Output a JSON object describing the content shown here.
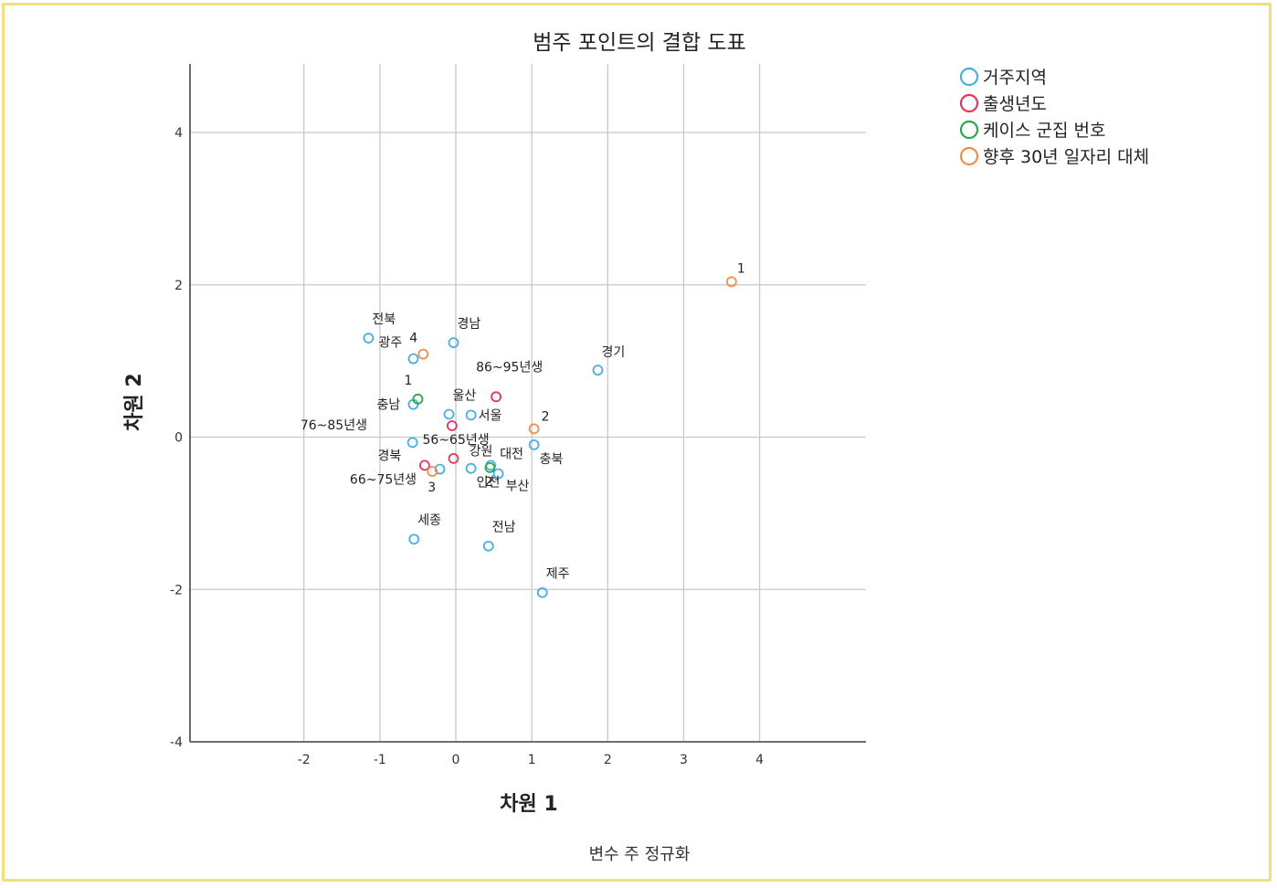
{
  "chart_data": {
    "type": "scatter",
    "title": "범주 포인트의 결합 도표",
    "xlabel": "차원 1",
    "ylabel": "차원 2",
    "footer": "변수 주 정규화",
    "xlim": [
      -3.5,
      5.4
    ],
    "ylim": [
      -4,
      4.9
    ],
    "xticks": [
      -2,
      -1,
      0,
      1,
      2,
      3,
      4
    ],
    "yticks": [
      -4,
      -2,
      0,
      2,
      4
    ],
    "grid": true,
    "legend_position": "top-right",
    "series": [
      {
        "name": "거주지역",
        "color": "#4aaee6",
        "points": [
          {
            "label": "전북",
            "x": -1.15,
            "y": 1.3
          },
          {
            "label": "광주",
            "x": -0.56,
            "y": 1.03
          },
          {
            "label": "경남",
            "x": -0.03,
            "y": 1.24
          },
          {
            "label": "경기",
            "x": 1.87,
            "y": 0.88
          },
          {
            "label": "충남",
            "x": -0.56,
            "y": 0.43
          },
          {
            "label": "울산",
            "x": -0.09,
            "y": 0.3
          },
          {
            "label": "서울",
            "x": 0.2,
            "y": 0.29
          },
          {
            "label": "강원",
            "x": -0.57,
            "y": -0.07
          },
          {
            "label": "경북",
            "x": -0.21,
            "y": -0.42
          },
          {
            "label": "인천",
            "x": 0.2,
            "y": -0.41
          },
          {
            "label": "대전",
            "x": 0.46,
            "y": -0.37
          },
          {
            "label": "부산",
            "x": 0.56,
            "y": -0.48
          },
          {
            "label": "충북",
            "x": 1.03,
            "y": -0.1
          },
          {
            "label": "세종",
            "x": -0.55,
            "y": -1.34
          },
          {
            "label": "전남",
            "x": 0.43,
            "y": -1.43
          },
          {
            "label": "제주",
            "x": 1.14,
            "y": -2.04
          }
        ]
      },
      {
        "name": "출생년도",
        "color": "#e8335a",
        "points": [
          {
            "label": "86~95년생",
            "x": 0.53,
            "y": 0.53
          },
          {
            "label": "76~85년생",
            "x": -0.05,
            "y": 0.15
          },
          {
            "label": "56~65년생",
            "x": -0.03,
            "y": -0.28
          },
          {
            "label": "66~75년생",
            "x": -0.41,
            "y": -0.37
          }
        ]
      },
      {
        "name": "케이스 군집 번호",
        "color": "#2aa84a",
        "points": [
          {
            "label": "1",
            "x": -0.5,
            "y": 0.5
          },
          {
            "label": "2",
            "x": 0.45,
            "y": -0.4
          }
        ]
      },
      {
        "name": "향후 30년 일자리 대체",
        "color": "#f28e4a",
        "points": [
          {
            "label": "1",
            "x": 3.63,
            "y": 2.04
          },
          {
            "label": "4",
            "x": -0.43,
            "y": 1.09
          },
          {
            "label": "2",
            "x": 1.03,
            "y": 0.11
          },
          {
            "label": "3",
            "x": -0.31,
            "y": -0.45
          }
        ]
      }
    ]
  }
}
